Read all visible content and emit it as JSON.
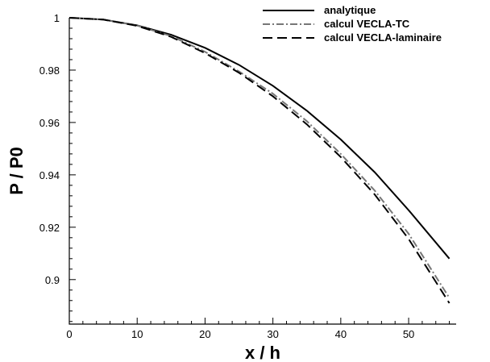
{
  "chart_data": {
    "type": "line",
    "title": "",
    "xlabel": "x / h",
    "ylabel": "P / P0",
    "xlim": [
      0,
      57
    ],
    "ylim": [
      0.883,
      1.0
    ],
    "xticks": [
      0,
      10,
      20,
      30,
      40,
      50
    ],
    "yticks": [
      0.9,
      0.92,
      0.94,
      0.96,
      0.98,
      1
    ],
    "ytick_labels": [
      "0.9",
      "0.92",
      "0.94",
      "0.96",
      "0.98",
      "1"
    ],
    "xtick_labels": [
      "0",
      "10",
      "20",
      "30",
      "40",
      "50"
    ],
    "grid": false,
    "legend": "top-right",
    "series": [
      {
        "name": "analytique",
        "color": "#000000",
        "style": "solid",
        "x": [
          0,
          5,
          10,
          15,
          20,
          25,
          30,
          35,
          40,
          45,
          50,
          56
        ],
        "y": [
          1.0,
          0.9993,
          0.9971,
          0.9935,
          0.9885,
          0.982,
          0.974,
          0.9645,
          0.9535,
          0.941,
          0.9265,
          0.908
        ]
      },
      {
        "name": "calcul VECLA-TC",
        "color": "#777777",
        "style": "dashdot",
        "x": [
          0,
          5,
          10,
          15,
          20,
          25,
          30,
          35,
          40,
          45,
          50,
          56
        ],
        "y": [
          1.0,
          0.9993,
          0.997,
          0.993,
          0.987,
          0.9795,
          0.971,
          0.9605,
          0.948,
          0.934,
          0.9175,
          0.893
        ]
      },
      {
        "name": "calcul VECLA-laminaire",
        "color": "#000000",
        "style": "dashed",
        "x": [
          0,
          5,
          10,
          15,
          20,
          25,
          30,
          35,
          40,
          45,
          50,
          56
        ],
        "y": [
          1.0,
          0.9993,
          0.9969,
          0.9927,
          0.9865,
          0.979,
          0.97,
          0.9593,
          0.9468,
          0.9325,
          0.9155,
          0.891
        ]
      }
    ]
  }
}
